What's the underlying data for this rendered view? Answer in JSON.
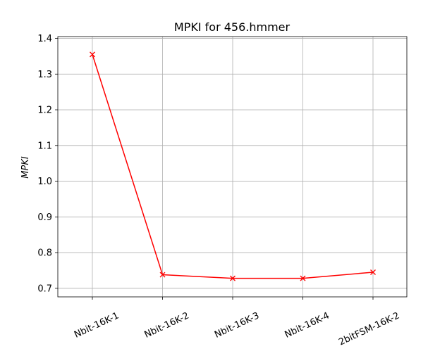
{
  "chart_data": {
    "type": "line",
    "title": "MPKI for 456.hmmer",
    "xlabel": "",
    "ylabel": "MPKI",
    "categories": [
      "Nbit-16K-1",
      "Nbit-16K-2",
      "Nbit-16K-3",
      "Nbit-16K-4",
      "2bitFSM-16K-2"
    ],
    "series": [
      {
        "values": [
          1.355,
          0.738,
          0.728,
          0.728,
          0.745
        ],
        "color": "#ff0000",
        "marker": "x"
      }
    ],
    "ylim": [
      0.676,
      1.405
    ],
    "yticks": [
      0.7,
      0.8,
      0.9,
      1.0,
      1.1,
      1.2,
      1.3,
      1.4
    ],
    "ytick_labels": [
      "0.7",
      "0.8",
      "0.9",
      "1.0",
      "1.1",
      "1.2",
      "1.3",
      "1.4"
    ],
    "grid": true,
    "legend": "none"
  }
}
